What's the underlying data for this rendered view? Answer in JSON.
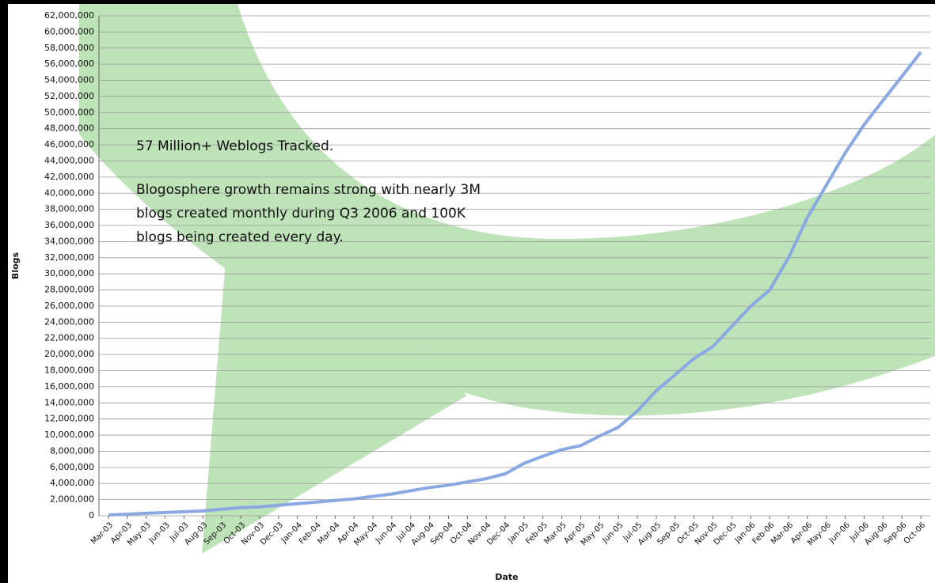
{
  "chart_data": {
    "type": "line",
    "xlabel": "Date",
    "ylabel": "Blogs",
    "annotations": [
      "57 Million+ Weblogs Tracked.",
      "Blogosphere growth remains strong with nearly 3M",
      "blogs created monthly during Q3 2006 and 100K",
      "blogs being created every day."
    ],
    "categories": [
      "Mar-03",
      "Apr-03",
      "May-03",
      "Jun-03",
      "Jul-03",
      "Aug-03",
      "Sep-03",
      "Oct-03",
      "Nov-03",
      "Dec-03",
      "Jan-04",
      "Feb-04",
      "Mar-04",
      "Apr-04",
      "May-04",
      "Jun-04",
      "Jul-04",
      "Aug-04",
      "Sep-04",
      "Oct-04",
      "Nov-04",
      "Dec-04",
      "Jan-05",
      "Feb-05",
      "Mar-05",
      "Apr-05",
      "May-05",
      "Jun-05",
      "Jul-05",
      "Aug-05",
      "Sep-05",
      "Oct-05",
      "Nov-05",
      "Dec-05",
      "Jan-06",
      "Feb-06",
      "Mar-06",
      "Apr-06",
      "May-06",
      "Jun-06",
      "Jul-06",
      "Aug-06",
      "Sep-06",
      "Oct-06"
    ],
    "series": [
      {
        "name": "Blogs",
        "color": "#8aa8e2",
        "values": [
          100000,
          200000,
          300000,
          400000,
          500000,
          600000,
          800000,
          1000000,
          1100000,
          1300000,
          1500000,
          1700000,
          1900000,
          2100000,
          2400000,
          2700000,
          3100000,
          3500000,
          3800000,
          4200000,
          4600000,
          5200000,
          6500000,
          7400000,
          8200000,
          8700000,
          9900000,
          11000000,
          13000000,
          15500000,
          17500000,
          19500000,
          21000000,
          23500000,
          26000000,
          28000000,
          32000000,
          37000000,
          41000000,
          45000000,
          48500000,
          51500000,
          54500000,
          57500000
        ]
      }
    ],
    "ylim": [
      0,
      62000000
    ],
    "yticks": [
      0,
      {
        "value": 2000000,
        "label": "2,000,000"
      },
      {
        "value": 4000000,
        "label": "4,000,000"
      },
      {
        "value": 6000000,
        "label": "6,000,000"
      },
      {
        "value": 8000000,
        "label": "8,000,000"
      },
      {
        "value": 10000000,
        "label": "10,000,000"
      },
      {
        "value": 12000000,
        "label": "12,000,000"
      },
      {
        "value": 14000000,
        "label": "14,000,000"
      },
      {
        "value": 16000000,
        "label": "16,000,000"
      },
      {
        "value": 18000000,
        "label": "18,000,000"
      },
      {
        "value": 20000000,
        "label": "20,000,000"
      },
      {
        "value": 22000000,
        "label": "22,000,000"
      },
      {
        "value": 24000000,
        "label": "24,000,000"
      },
      {
        "value": 26000000,
        "label": "26,000,000"
      },
      {
        "value": 28000000,
        "label": "28,000,000"
      },
      {
        "value": 30000000,
        "label": "30,000,000"
      },
      {
        "value": 32000000,
        "label": "32,000,000"
      },
      {
        "value": 34000000,
        "label": "34,000,000"
      },
      {
        "value": 36000000,
        "label": "36,000,000"
      },
      {
        "value": 38000000,
        "label": "38,000,000"
      },
      {
        "value": 40000000,
        "label": "40,000,000"
      },
      {
        "value": 42000000,
        "label": "42,000,000"
      },
      {
        "value": 44000000,
        "label": "44,000,000"
      },
      {
        "value": 46000000,
        "label": "46,000,000"
      },
      {
        "value": 48000000,
        "label": "48,000,000"
      },
      {
        "value": 50000000,
        "label": "50,000,000"
      },
      {
        "value": 52000000,
        "label": "52,000,000"
      },
      {
        "value": 54000000,
        "label": "54,000,000"
      },
      {
        "value": 56000000,
        "label": "56,000,000"
      },
      {
        "value": 58000000,
        "label": "58,000,000"
      },
      {
        "value": 60000000,
        "label": "60,000,000"
      },
      {
        "value": 62000000,
        "label": "62,000,000"
      }
    ],
    "grid": true
  }
}
